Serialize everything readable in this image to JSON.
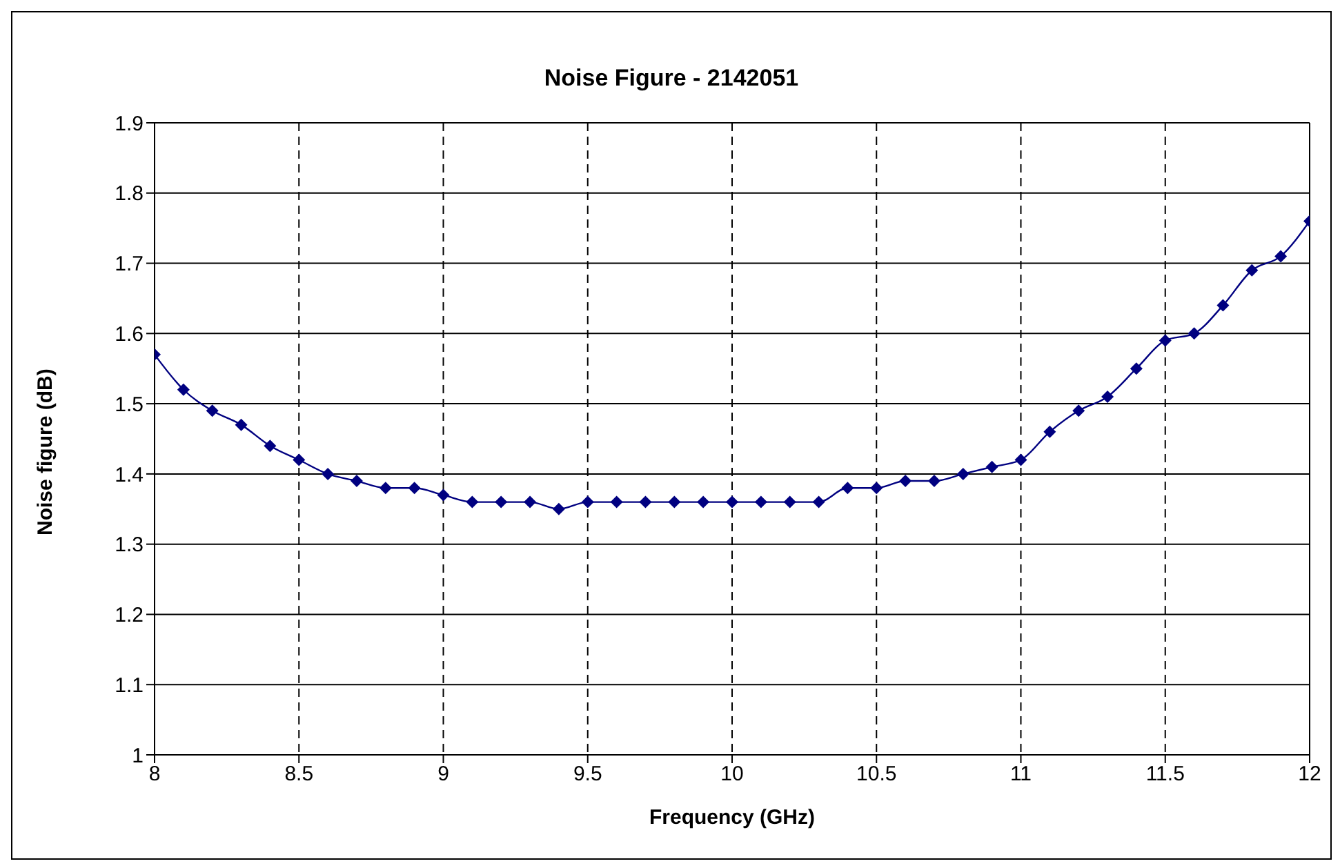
{
  "chart_data": {
    "type": "line",
    "title": "Noise Figure - 2142051",
    "xlabel": "Frequency (GHz)",
    "ylabel": "Noise figure (dB)",
    "x": [
      8,
      8.1,
      8.2,
      8.3,
      8.4,
      8.5,
      8.6,
      8.7,
      8.8,
      8.9,
      9,
      9.1,
      9.2,
      9.3,
      9.4,
      9.5,
      9.6,
      9.7,
      9.8,
      9.9,
      10,
      10.1,
      10.2,
      10.3,
      10.4,
      10.5,
      10.6,
      10.7,
      10.8,
      10.9,
      11,
      11.1,
      11.2,
      11.3,
      11.4,
      11.5,
      11.6,
      11.7,
      11.8,
      11.9,
      12
    ],
    "series": [
      {
        "color": "#000080",
        "values": [
          1.57,
          1.52,
          1.49,
          1.47,
          1.44,
          1.42,
          1.4,
          1.39,
          1.38,
          1.38,
          1.37,
          1.36,
          1.36,
          1.36,
          1.35,
          1.36,
          1.36,
          1.36,
          1.36,
          1.36,
          1.36,
          1.36,
          1.36,
          1.36,
          1.38,
          1.38,
          1.39,
          1.39,
          1.4,
          1.41,
          1.42,
          1.46,
          1.49,
          1.51,
          1.55,
          1.59,
          1.6,
          1.64,
          1.69,
          1.71,
          1.76
        ]
      }
    ],
    "xlim": [
      8,
      12
    ],
    "xticks": [
      8,
      8.5,
      9,
      9.5,
      10,
      10.5,
      11,
      11.5,
      12
    ],
    "ylim": [
      1,
      1.9
    ],
    "yticks": [
      1,
      1.1,
      1.2,
      1.3,
      1.4,
      1.5,
      1.6,
      1.7,
      1.8,
      1.9
    ],
    "grid": true,
    "legend": false,
    "marker": "diamond",
    "line_style": "solid"
  }
}
